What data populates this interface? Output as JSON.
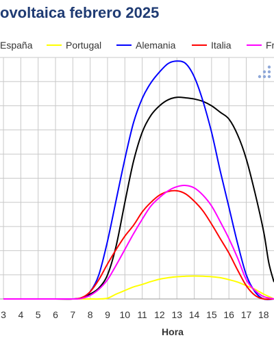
{
  "title": "ovoltaica febrero 2025",
  "chart_data": {
    "type": "line",
    "xlabel": "Hora",
    "ylabel": "",
    "x_ticks": [
      "3",
      "4",
      "5",
      "6",
      "7",
      "8",
      "9",
      "10",
      "11",
      "12",
      "13",
      "14",
      "15",
      "16",
      "17",
      "18"
    ],
    "xlim": [
      2.8,
      18.6
    ],
    "ylim": [
      0,
      100
    ],
    "grid": true,
    "legend_position": "top",
    "series": [
      {
        "name": "España",
        "color": "#000000",
        "x": [
          3,
          4,
          5,
          6,
          7,
          7.5,
          8,
          8.5,
          9,
          9.5,
          10,
          10.5,
          11,
          11.5,
          12,
          12.5,
          13,
          13.5,
          14,
          14.5,
          15,
          15.5,
          16,
          16.5,
          17,
          17.5,
          18,
          18.3,
          18.6
        ],
        "y": [
          0,
          0,
          0,
          0,
          0,
          0.3,
          2,
          4.5,
          10,
          22,
          40,
          57,
          69,
          76,
          80,
          82.5,
          83.5,
          83.3,
          82.8,
          81.8,
          80,
          77.3,
          74.5,
          68,
          58,
          44,
          28,
          15,
          7
        ]
      },
      {
        "name": "Portugal",
        "color": "#ffff00",
        "x": [
          3,
          4,
          5,
          6,
          7,
          8,
          8.5,
          9,
          9.5,
          10,
          10.5,
          11,
          11.5,
          12,
          12.5,
          13,
          13.5,
          14,
          14.5,
          15,
          15.5,
          16,
          16.5,
          17,
          17.5,
          18,
          18.6
        ],
        "y": [
          0,
          0,
          0,
          0,
          0,
          0,
          0,
          0.3,
          2,
          3.5,
          5,
          6,
          7.2,
          8.2,
          8.8,
          9.2,
          9.4,
          9.5,
          9.4,
          9.2,
          8.8,
          8,
          7,
          5.5,
          4,
          2,
          0
        ]
      },
      {
        "name": "Alemania",
        "color": "#0000ff",
        "x": [
          3,
          4,
          5,
          6,
          7,
          7.5,
          8,
          8.5,
          9,
          9.5,
          10,
          10.5,
          11,
          11.5,
          12,
          12.5,
          13,
          13.5,
          14,
          14.5,
          15,
          15.5,
          16,
          16.5,
          17,
          17.5,
          18,
          18.6
        ],
        "y": [
          0,
          0,
          0,
          0,
          0,
          0.5,
          3,
          10,
          24,
          41,
          58,
          73,
          83,
          89.5,
          94,
          97.5,
          98.5,
          97.5,
          92,
          82,
          69,
          53,
          38,
          23,
          10,
          3,
          0,
          0
        ]
      },
      {
        "name": "Italia",
        "color": "#ff0000",
        "x": [
          3,
          4,
          5,
          6,
          7,
          7.5,
          8,
          8.5,
          9,
          9.5,
          10,
          10.5,
          11,
          11.5,
          12,
          12.5,
          13,
          13.5,
          14,
          14.5,
          15,
          15.5,
          16,
          16.5,
          17,
          17.5,
          18,
          18.6
        ],
        "y": [
          0,
          0,
          0,
          0,
          0,
          0.5,
          3,
          8,
          14.5,
          20.5,
          26,
          30.5,
          36,
          40,
          43,
          44.5,
          44.8,
          43.5,
          40.5,
          36.5,
          31,
          25,
          19,
          12,
          5.5,
          1.5,
          0,
          0
        ]
      },
      {
        "name": "Francia",
        "color": "#ff00ff",
        "x": [
          3,
          4,
          5,
          6,
          7,
          7.5,
          8,
          8.5,
          9,
          9.5,
          10,
          10.5,
          11,
          11.5,
          12,
          12.5,
          13,
          13.5,
          14,
          14.5,
          15,
          15.5,
          16,
          16.5,
          17,
          17.5,
          18,
          18.6
        ],
        "y": [
          0,
          0,
          0,
          0,
          0,
          0.2,
          1.5,
          4,
          8,
          14,
          20.5,
          27,
          33,
          38.5,
          42,
          44.8,
          46.5,
          47,
          46,
          43,
          38.5,
          32,
          25,
          17,
          8,
          3.5,
          1,
          0
        ]
      }
    ]
  }
}
